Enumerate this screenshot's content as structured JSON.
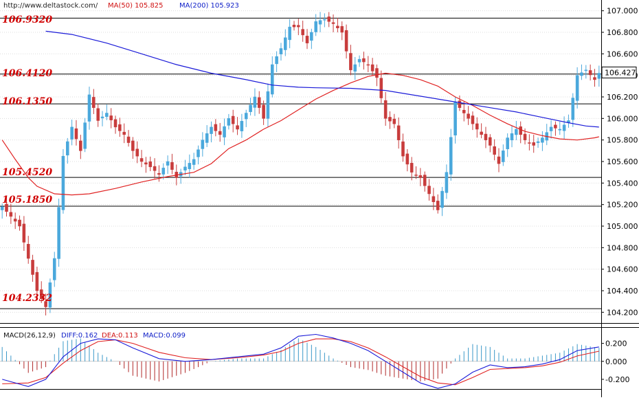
{
  "header": {
    "source": "http://www.deltastock.com/",
    "ma50": "MA(50)  105.825",
    "ma200": "MA(200)  105.923"
  },
  "colors": {
    "bull": "#4aa8dc",
    "bear": "#c83c3c",
    "ma50": "#e02020",
    "ma200": "#1a1ad8",
    "levels": "#d00000"
  },
  "levels": [
    {
      "value": 106.932,
      "label": "106.9320"
    },
    {
      "value": 106.412,
      "label": "106.4120"
    },
    {
      "value": 106.135,
      "label": "106.1350"
    },
    {
      "value": 105.452,
      "label": "105.4520"
    },
    {
      "value": 105.185,
      "label": "105.1850"
    },
    {
      "value": 104.2332,
      "label": "104.2332"
    }
  ],
  "last_price": "106.427",
  "chart_data": {
    "type": "candlestick",
    "yaxis": {
      "min": 104.1,
      "max": 107.1,
      "ticks": [
        "107.000",
        "106.800",
        "106.600",
        "106.400",
        "106.200",
        "106.000",
        "105.800",
        "105.600",
        "105.400",
        "105.200",
        "105.000",
        "104.800",
        "104.600",
        "104.400",
        "104.200"
      ]
    },
    "close_path": [
      [
        0,
        105.18
      ],
      [
        4,
        105.0
      ],
      [
        8,
        104.4
      ],
      [
        10,
        104.25
      ],
      [
        12,
        104.7
      ],
      [
        14,
        105.65
      ],
      [
        16,
        105.92
      ],
      [
        18,
        105.7
      ],
      [
        20,
        106.22
      ],
      [
        22,
        105.98
      ],
      [
        24,
        106.05
      ],
      [
        26,
        105.92
      ],
      [
        28,
        105.85
      ],
      [
        30,
        105.7
      ],
      [
        32,
        105.6
      ],
      [
        34,
        105.55
      ],
      [
        36,
        105.48
      ],
      [
        38,
        105.6
      ],
      [
        40,
        105.45
      ],
      [
        42,
        105.55
      ],
      [
        44,
        105.62
      ],
      [
        46,
        105.8
      ],
      [
        48,
        105.92
      ],
      [
        50,
        105.85
      ],
      [
        52,
        106.0
      ],
      [
        54,
        105.9
      ],
      [
        56,
        106.05
      ],
      [
        58,
        106.2
      ],
      [
        60,
        106.0
      ],
      [
        62,
        106.5
      ],
      [
        64,
        106.65
      ],
      [
        66,
        106.85
      ],
      [
        68,
        106.85
      ],
      [
        70,
        106.7
      ],
      [
        72,
        106.9
      ],
      [
        74,
        106.92
      ],
      [
        76,
        106.88
      ],
      [
        78,
        106.8
      ],
      [
        80,
        106.45
      ],
      [
        82,
        106.55
      ],
      [
        84,
        106.5
      ],
      [
        86,
        106.38
      ],
      [
        88,
        106.0
      ],
      [
        90,
        105.95
      ],
      [
        92,
        105.65
      ],
      [
        94,
        105.5
      ],
      [
        96,
        105.45
      ],
      [
        98,
        105.3
      ],
      [
        100,
        105.15
      ],
      [
        102,
        105.5
      ],
      [
        104,
        106.15
      ],
      [
        106,
        106.05
      ],
      [
        108,
        105.95
      ],
      [
        110,
        105.85
      ],
      [
        112,
        105.75
      ],
      [
        114,
        105.58
      ],
      [
        116,
        105.82
      ],
      [
        118,
        105.9
      ],
      [
        120,
        105.8
      ],
      [
        122,
        105.75
      ],
      [
        124,
        105.82
      ],
      [
        126,
        105.92
      ],
      [
        128,
        105.9
      ],
      [
        130,
        105.98
      ],
      [
        132,
        106.4
      ],
      [
        134,
        106.45
      ],
      [
        136,
        106.36
      ],
      [
        137,
        106.42
      ]
    ],
    "ma50_path": [
      [
        0,
        105.8
      ],
      [
        3,
        105.62
      ],
      [
        6,
        105.45
      ],
      [
        8,
        105.37
      ],
      [
        12,
        105.3
      ],
      [
        16,
        105.29
      ],
      [
        20,
        105.3
      ],
      [
        26,
        105.35
      ],
      [
        32,
        105.41
      ],
      [
        38,
        105.46
      ],
      [
        44,
        105.5
      ],
      [
        48,
        105.58
      ],
      [
        52,
        105.72
      ],
      [
        56,
        105.8
      ],
      [
        60,
        105.9
      ],
      [
        64,
        105.98
      ],
      [
        68,
        106.08
      ],
      [
        72,
        106.18
      ],
      [
        76,
        106.26
      ],
      [
        80,
        106.33
      ],
      [
        84,
        106.39
      ],
      [
        88,
        106.42
      ],
      [
        92,
        106.4
      ],
      [
        96,
        106.36
      ],
      [
        100,
        106.3
      ],
      [
        104,
        106.2
      ],
      [
        108,
        106.12
      ],
      [
        112,
        106.03
      ],
      [
        116,
        105.95
      ],
      [
        120,
        105.88
      ],
      [
        124,
        105.84
      ],
      [
        128,
        105.81
      ],
      [
        132,
        105.8
      ],
      [
        136,
        105.82
      ],
      [
        137,
        105.83
      ]
    ],
    "ma200_path": [
      [
        10,
        106.81
      ],
      [
        16,
        106.78
      ],
      [
        24,
        106.7
      ],
      [
        32,
        106.6
      ],
      [
        40,
        106.5
      ],
      [
        48,
        106.42
      ],
      [
        56,
        106.36
      ],
      [
        62,
        106.31
      ],
      [
        68,
        106.29
      ],
      [
        72,
        106.285
      ],
      [
        80,
        106.28
      ],
      [
        88,
        106.26
      ],
      [
        94,
        106.22
      ],
      [
        100,
        106.18
      ],
      [
        106,
        106.14
      ],
      [
        112,
        106.1
      ],
      [
        118,
        106.06
      ],
      [
        124,
        106.01
      ],
      [
        130,
        105.96
      ],
      [
        134,
        105.93
      ],
      [
        137,
        105.92
      ]
    ]
  },
  "macd": {
    "title": "MACD(26,12,9)",
    "diff": "DIFF:0.162",
    "dea": "DEA:0.113",
    "macd": "MACD:0.099",
    "ymin": -0.3,
    "ymax": 0.35,
    "ticks": [
      "0.200",
      "0.000",
      "-0.200"
    ],
    "diff_path": [
      [
        0,
        -0.2
      ],
      [
        6,
        -0.28
      ],
      [
        10,
        -0.2
      ],
      [
        14,
        0.05
      ],
      [
        18,
        0.2
      ],
      [
        22,
        0.25
      ],
      [
        26,
        0.24
      ],
      [
        30,
        0.15
      ],
      [
        36,
        0.03
      ],
      [
        42,
        0.0
      ],
      [
        48,
        0.02
      ],
      [
        54,
        0.05
      ],
      [
        60,
        0.08
      ],
      [
        64,
        0.15
      ],
      [
        68,
        0.28
      ],
      [
        72,
        0.3
      ],
      [
        76,
        0.26
      ],
      [
        80,
        0.2
      ],
      [
        84,
        0.12
      ],
      [
        88,
        0.0
      ],
      [
        92,
        -0.12
      ],
      [
        96,
        -0.24
      ],
      [
        100,
        -0.3
      ],
      [
        104,
        -0.25
      ],
      [
        108,
        -0.12
      ],
      [
        112,
        -0.04
      ],
      [
        116,
        -0.07
      ],
      [
        120,
        -0.06
      ],
      [
        124,
        -0.03
      ],
      [
        128,
        0.02
      ],
      [
        132,
        0.12
      ],
      [
        137,
        0.16
      ]
    ],
    "dea_path": [
      [
        0,
        -0.25
      ],
      [
        6,
        -0.24
      ],
      [
        10,
        -0.18
      ],
      [
        14,
        -0.02
      ],
      [
        18,
        0.12
      ],
      [
        22,
        0.22
      ],
      [
        26,
        0.24
      ],
      [
        30,
        0.2
      ],
      [
        36,
        0.1
      ],
      [
        42,
        0.04
      ],
      [
        48,
        0.02
      ],
      [
        54,
        0.04
      ],
      [
        60,
        0.07
      ],
      [
        64,
        0.11
      ],
      [
        68,
        0.2
      ],
      [
        72,
        0.25
      ],
      [
        76,
        0.25
      ],
      [
        80,
        0.22
      ],
      [
        84,
        0.15
      ],
      [
        88,
        0.05
      ],
      [
        92,
        -0.06
      ],
      [
        96,
        -0.17
      ],
      [
        100,
        -0.24
      ],
      [
        104,
        -0.26
      ],
      [
        108,
        -0.18
      ],
      [
        112,
        -0.09
      ],
      [
        116,
        -0.08
      ],
      [
        120,
        -0.07
      ],
      [
        124,
        -0.05
      ],
      [
        128,
        -0.01
      ],
      [
        132,
        0.06
      ],
      [
        137,
        0.113
      ]
    ]
  }
}
